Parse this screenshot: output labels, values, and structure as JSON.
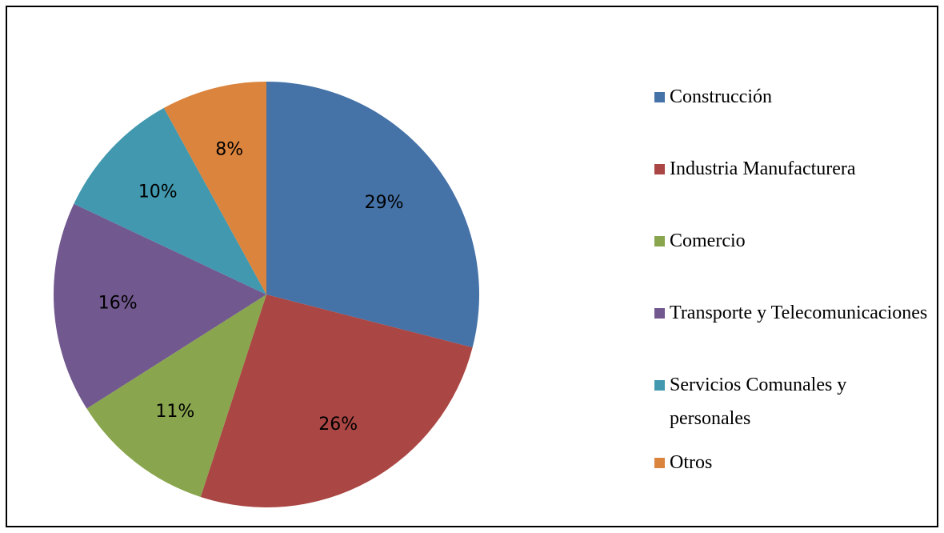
{
  "chart_data": {
    "type": "pie",
    "categories": [
      "Construcción",
      "Industria Manufacturera",
      "Comercio",
      "Transporte y Telecomunicaciones",
      "Servicios Comunales y personales",
      "Otros"
    ],
    "values": [
      29,
      26,
      11,
      16,
      10,
      8
    ],
    "value_labels": [
      "29%",
      "26%",
      "11%",
      "16%",
      "10%",
      "8%"
    ],
    "colors": [
      "#4572a7",
      "#aa4643",
      "#89a54e",
      "#71588f",
      "#4198af",
      "#db843d"
    ],
    "legend": "right"
  }
}
